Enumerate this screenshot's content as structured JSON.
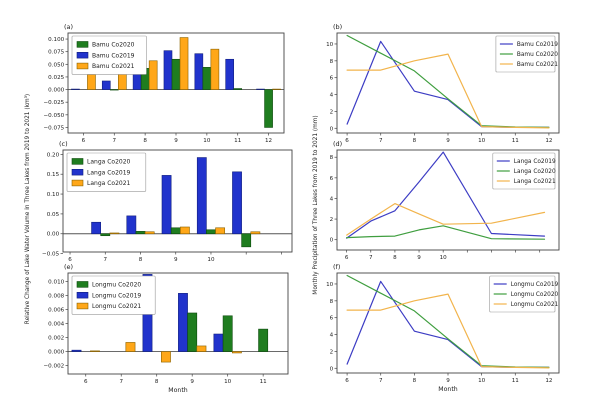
{
  "figure": {
    "left_ylabel": "Relative Change of Lake Water Volume in Three Lakes from 2019 to 2021 (km³)",
    "right_ylabel": "Monthly Precipitation of Three Lakes from 2019 to 2021 (mm)",
    "colors": {
      "bar_blue": "#2133cc",
      "bar_blue_edge": "#12207e",
      "bar_green": "#1f7d1f",
      "bar_green_edge": "#0d4a0d",
      "bar_orange": "#ffa718",
      "bar_orange_edge": "#8a6200",
      "line_blue": "#3d3dc4",
      "line_green": "#3f9e3f",
      "line_orange": "#f2b44c",
      "axis": "#444444",
      "text": "#1c1c1c",
      "zero_line": "#555555",
      "legend_border": "#999999"
    }
  },
  "chart_data": [
    {
      "id": "a",
      "panel_label": "(a)",
      "type": "bar",
      "lake": "Bamu Co",
      "xlabel": "",
      "x": [
        6,
        7,
        8,
        9,
        10,
        11,
        12
      ],
      "xlim": [
        5.5,
        12.5
      ],
      "ylim": [
        -0.086,
        0.112
      ],
      "xticks": [
        {
          "v": 6,
          "label": "6"
        },
        {
          "v": 7,
          "label": "7"
        },
        {
          "v": 8,
          "label": "8"
        },
        {
          "v": 9,
          "label": "9"
        },
        {
          "v": 10,
          "label": "10"
        },
        {
          "v": 11,
          "label": "11"
        },
        {
          "v": 12,
          "label": "12"
        }
      ],
      "yticks": [
        {
          "v": 0.1,
          "label": "0.100"
        },
        {
          "v": 0.075,
          "label": "0.075"
        },
        {
          "v": 0.05,
          "label": "0.050"
        },
        {
          "v": 0.025,
          "label": "0.025"
        },
        {
          "v": 0.0,
          "label": "0.000"
        },
        {
          "v": -0.025,
          "label": "−0.025"
        },
        {
          "v": -0.05,
          "label": "−0.050"
        },
        {
          "v": -0.075,
          "label": "−0.075"
        }
      ],
      "series": [
        {
          "name": "Bamu Co2019",
          "color": "bar_blue",
          "values": [
            0.001,
            0.017,
            0.067,
            0.077,
            0.071,
            0.06,
            0.001
          ]
        },
        {
          "name": "Bamu Co2020",
          "color": "bar_green",
          "values": [
            0.0,
            -0.001,
            0.042,
            0.06,
            0.044,
            0.002,
            -0.075
          ]
        },
        {
          "name": "Bamu Co2021",
          "color": "bar_orange",
          "values": [
            0.03,
            0.032,
            0.057,
            0.103,
            0.08,
            0.0,
            0.001
          ]
        }
      ],
      "legend": {
        "position": "top-left",
        "style": "patch",
        "entries": [
          {
            "label": "Bamu Co2020",
            "color": "bar_green"
          },
          {
            "label": "Bamu Co2019",
            "color": "bar_blue"
          },
          {
            "label": "Bamu Co2021",
            "color": "bar_orange"
          }
        ]
      }
    },
    {
      "id": "b",
      "panel_label": "(b)",
      "type": "line",
      "lake": "Bamu Co",
      "xlabel": "",
      "x": [
        6,
        7,
        8,
        9,
        10,
        11,
        12
      ],
      "xlim": [
        5.7,
        12.3
      ],
      "ylim": [
        -0.56,
        11.3
      ],
      "xticks": [
        {
          "v": 6,
          "label": "6"
        },
        {
          "v": 7,
          "label": "7"
        },
        {
          "v": 8,
          "label": "8"
        },
        {
          "v": 9,
          "label": "9"
        },
        {
          "v": 10,
          "label": "10"
        },
        {
          "v": 11,
          "label": "11"
        },
        {
          "v": 12,
          "label": "12"
        }
      ],
      "yticks": [
        {
          "v": 0,
          "label": "0"
        },
        {
          "v": 2,
          "label": "2"
        },
        {
          "v": 4,
          "label": "4"
        },
        {
          "v": 6,
          "label": "6"
        },
        {
          "v": 8,
          "label": "8"
        },
        {
          "v": 10,
          "label": "10"
        }
      ],
      "series": [
        {
          "name": "Bamu Co2019",
          "color": "line_blue",
          "values": [
            0.5,
            10.3,
            4.4,
            3.4,
            0.2,
            0.1,
            0.1
          ]
        },
        {
          "name": "Bamu Co2020",
          "color": "line_green",
          "values": [
            11.0,
            8.9,
            6.8,
            3.5,
            0.3,
            0.15,
            0.1
          ]
        },
        {
          "name": "Bamu Co2021",
          "color": "line_orange",
          "values": [
            6.9,
            6.9,
            8.0,
            8.8,
            0.2,
            0.1,
            0.05
          ]
        }
      ],
      "legend": {
        "position": "top-right",
        "style": "line",
        "entries": [
          {
            "label": "Bamu Co2019",
            "color": "line_blue"
          },
          {
            "label": "Bamu Co2020",
            "color": "line_green"
          },
          {
            "label": "Bamu Co2021",
            "color": "line_orange"
          }
        ]
      }
    },
    {
      "id": "c",
      "panel_label": "(c)",
      "type": "bar",
      "lake": "Langa Co",
      "xlabel": "",
      "x": [
        7,
        8,
        9,
        10,
        11
      ],
      "xlim": [
        5.8,
        12.3
      ],
      "ylim": [
        -0.046,
        0.211
      ],
      "xticks": [
        {
          "v": 6,
          "label": "6"
        },
        {
          "v": 7,
          "label": "7"
        },
        {
          "v": 8,
          "label": "8"
        },
        {
          "v": 9,
          "label": "9"
        },
        {
          "v": 10,
          "label": "10"
        },
        {
          "v": 11,
          "label": ""
        },
        {
          "v": 12,
          "label": ""
        }
      ],
      "yticks": [
        {
          "v": 0.2,
          "label": "0.20"
        },
        {
          "v": 0.15,
          "label": "0.15"
        },
        {
          "v": 0.1,
          "label": "0.10"
        },
        {
          "v": 0.05,
          "label": "0.05"
        },
        {
          "v": 0.0,
          "label": "0.00"
        },
        {
          "v": -0.05,
          "label": "−0.05"
        }
      ],
      "series": [
        {
          "name": "Langa Co2019",
          "color": "bar_blue",
          "values": [
            0.029,
            0.045,
            0.147,
            0.192,
            0.156
          ]
        },
        {
          "name": "Langa Co2020",
          "color": "bar_green",
          "values": [
            -0.005,
            0.006,
            0.015,
            0.01,
            -0.033
          ]
        },
        {
          "name": "Langa Co2021",
          "color": "bar_orange",
          "values": [
            0.002,
            0.005,
            0.017,
            0.015,
            0.005
          ]
        }
      ],
      "legend": {
        "position": "top-left",
        "style": "patch",
        "entries": [
          {
            "label": "Langa Co2020",
            "color": "bar_green"
          },
          {
            "label": "Langa Co2019",
            "color": "bar_blue"
          },
          {
            "label": "Langa Co2021",
            "color": "bar_orange"
          }
        ]
      }
    },
    {
      "id": "d",
      "panel_label": "(d)",
      "type": "line",
      "lake": "Langa Co",
      "xlabel": "",
      "x": [
        6,
        7,
        8,
        9,
        10,
        12,
        14.2
      ],
      "xlim": [
        5.6,
        14.8
      ],
      "ylim": [
        -1.0,
        8.7
      ],
      "xticks": [
        {
          "v": 6,
          "label": "6"
        },
        {
          "v": 7,
          "label": "7"
        },
        {
          "v": 8,
          "label": "8"
        },
        {
          "v": 9,
          "label": "9"
        },
        {
          "v": 10,
          "label": "10"
        },
        {
          "v": 11,
          "label": ""
        },
        {
          "v": 12,
          "label": ""
        },
        {
          "v": 13,
          "label": ""
        },
        {
          "v": 14,
          "label": ""
        }
      ],
      "yticks": [
        {
          "v": 0,
          "label": "0"
        },
        {
          "v": 2,
          "label": "2"
        },
        {
          "v": 4,
          "label": "4"
        },
        {
          "v": 6,
          "label": "6"
        },
        {
          "v": 8,
          "label": "8"
        }
      ],
      "series": [
        {
          "name": "Langa Co2019",
          "color": "line_blue",
          "values": [
            0.15,
            1.8,
            2.8,
            5.6,
            8.5,
            0.6,
            0.35
          ]
        },
        {
          "name": "Langa Co2020",
          "color": "line_green",
          "values": [
            0.2,
            0.3,
            0.35,
            0.95,
            1.35,
            0.1,
            0.05
          ]
        },
        {
          "name": "Langa Co2021",
          "color": "line_orange",
          "values": [
            0.45,
            2.0,
            3.5,
            2.5,
            1.5,
            1.6,
            2.65
          ]
        }
      ],
      "legend": {
        "position": "top-right",
        "style": "line",
        "entries": [
          {
            "label": "Langa Co2019",
            "color": "line_blue"
          },
          {
            "label": "Langa Co2020",
            "color": "line_green"
          },
          {
            "label": "Langa Co2021",
            "color": "line_orange"
          }
        ]
      }
    },
    {
      "id": "e",
      "panel_label": "(e)",
      "type": "bar",
      "lake": "Longmu Co",
      "xlabel": "Month",
      "x": [
        6,
        7,
        8,
        9,
        10,
        11
      ],
      "xlim": [
        5.5,
        11.7
      ],
      "ylim": [
        -0.0032,
        0.0112
      ],
      "xticks": [
        {
          "v": 6,
          "label": "6"
        },
        {
          "v": 7,
          "label": "7"
        },
        {
          "v": 8,
          "label": "8"
        },
        {
          "v": 9,
          "label": "9"
        },
        {
          "v": 10,
          "label": "10"
        },
        {
          "v": 11,
          "label": "11"
        }
      ],
      "yticks": [
        {
          "v": 0.01,
          "label": "0.010"
        },
        {
          "v": 0.008,
          "label": "0.008"
        },
        {
          "v": 0.006,
          "label": "0.006"
        },
        {
          "v": 0.004,
          "label": "0.004"
        },
        {
          "v": 0.002,
          "label": "0.002"
        },
        {
          "v": 0.0,
          "label": "0.000"
        },
        {
          "v": -0.002,
          "label": "−0.002"
        }
      ],
      "series": [
        {
          "name": "Longmu Co2019",
          "color": "bar_blue",
          "values": [
            0.0002,
            0.0,
            0.011,
            0.0083,
            0.0025,
            0.0
          ]
        },
        {
          "name": "Longmu Co2020",
          "color": "bar_green",
          "values": [
            0.0,
            0.0,
            0.0,
            0.0055,
            0.0051,
            0.0032
          ]
        },
        {
          "name": "Longmu Co2021",
          "color": "bar_orange",
          "values": [
            0.0001,
            0.0013,
            -0.0015,
            0.0008,
            -0.0002,
            0.0
          ]
        }
      ],
      "legend": {
        "position": "top-left",
        "style": "patch",
        "entries": [
          {
            "label": "Longmu Co2020",
            "color": "bar_green"
          },
          {
            "label": "Longmu Co2019",
            "color": "bar_blue"
          },
          {
            "label": "Longmu Co2021",
            "color": "bar_orange"
          }
        ]
      }
    },
    {
      "id": "f",
      "panel_label": "(f)",
      "type": "line",
      "lake": "Longmu Co",
      "xlabel": "Month",
      "x": [
        6,
        7,
        8,
        9,
        10,
        11,
        12
      ],
      "xlim": [
        5.7,
        12.3
      ],
      "ylim": [
        -0.56,
        11.3
      ],
      "xticks": [
        {
          "v": 6,
          "label": "6"
        },
        {
          "v": 7,
          "label": "7"
        },
        {
          "v": 8,
          "label": "8"
        },
        {
          "v": 9,
          "label": "9"
        },
        {
          "v": 10,
          "label": "10"
        },
        {
          "v": 11,
          "label": "11"
        },
        {
          "v": 12,
          "label": "12"
        }
      ],
      "yticks": [
        {
          "v": 0,
          "label": "0"
        },
        {
          "v": 2,
          "label": "2"
        },
        {
          "v": 4,
          "label": "4"
        },
        {
          "v": 6,
          "label": "6"
        },
        {
          "v": 8,
          "label": "8"
        },
        {
          "v": 10,
          "label": "10"
        }
      ],
      "series": [
        {
          "name": "Longmu Co2019",
          "color": "line_blue",
          "values": [
            0.5,
            10.3,
            4.4,
            3.4,
            0.2,
            0.1,
            0.1
          ]
        },
        {
          "name": "Longmu Co2020",
          "color": "line_green",
          "values": [
            11.0,
            8.9,
            6.8,
            3.5,
            0.3,
            0.15,
            0.1
          ]
        },
        {
          "name": "Longmu Co2021",
          "color": "line_orange",
          "values": [
            6.9,
            6.9,
            8.0,
            8.8,
            0.2,
            0.1,
            0.05
          ]
        }
      ],
      "legend": {
        "position": "top-right",
        "style": "line",
        "entries": [
          {
            "label": "Longmu Co2019",
            "color": "line_blue"
          },
          {
            "label": "Longmu Co2020",
            "color": "line_green"
          },
          {
            "label": "Longmu Co2021",
            "color": "line_orange"
          }
        ]
      }
    }
  ]
}
